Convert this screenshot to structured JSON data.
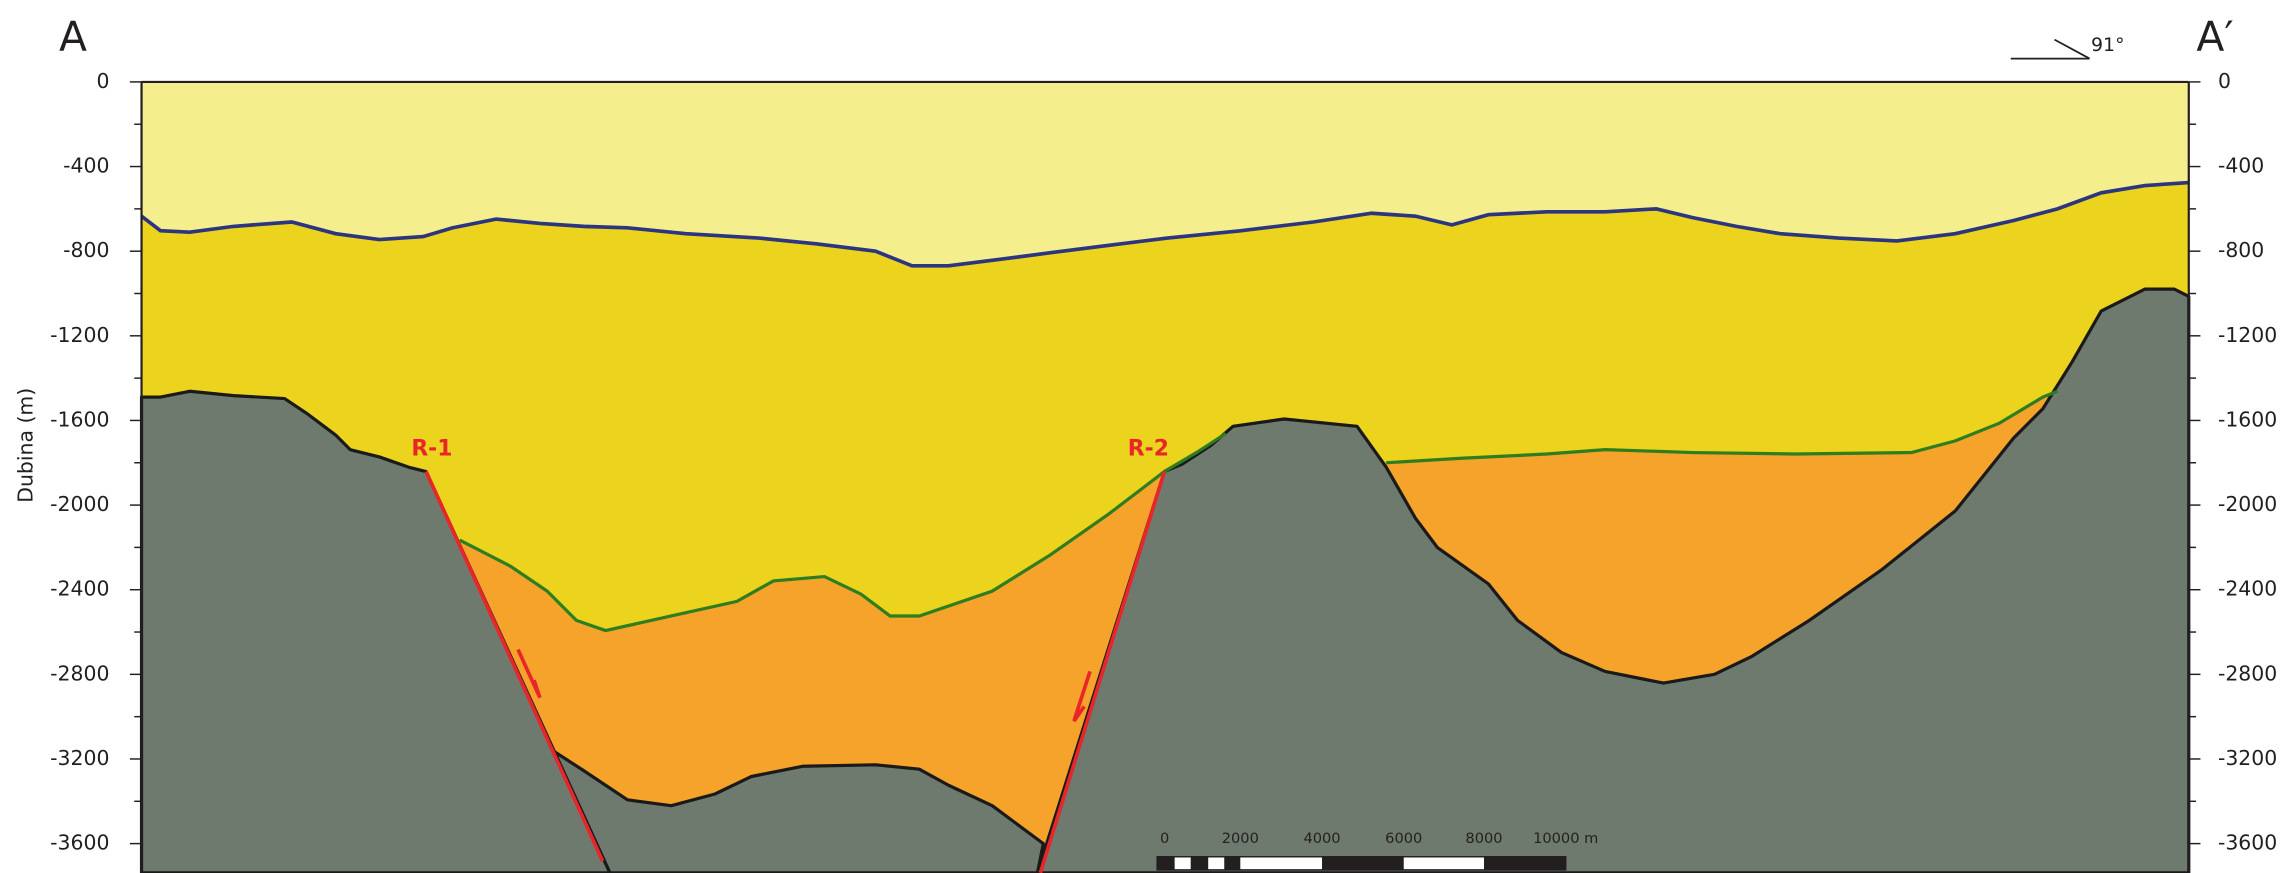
{
  "header": {
    "left_label": "A",
    "right_label": "A′",
    "dip": "91°"
  },
  "axis": {
    "label": "Dubina (m)",
    "ticks": [
      0,
      -400,
      -800,
      -1200,
      -1600,
      -2000,
      -2400,
      -2800,
      -3200,
      -3600
    ]
  },
  "faults": [
    "R-1",
    "R-2"
  ],
  "scale_bar": [
    "0",
    "2000",
    "4000",
    "6000",
    "8000",
    "10000 m"
  ]
}
